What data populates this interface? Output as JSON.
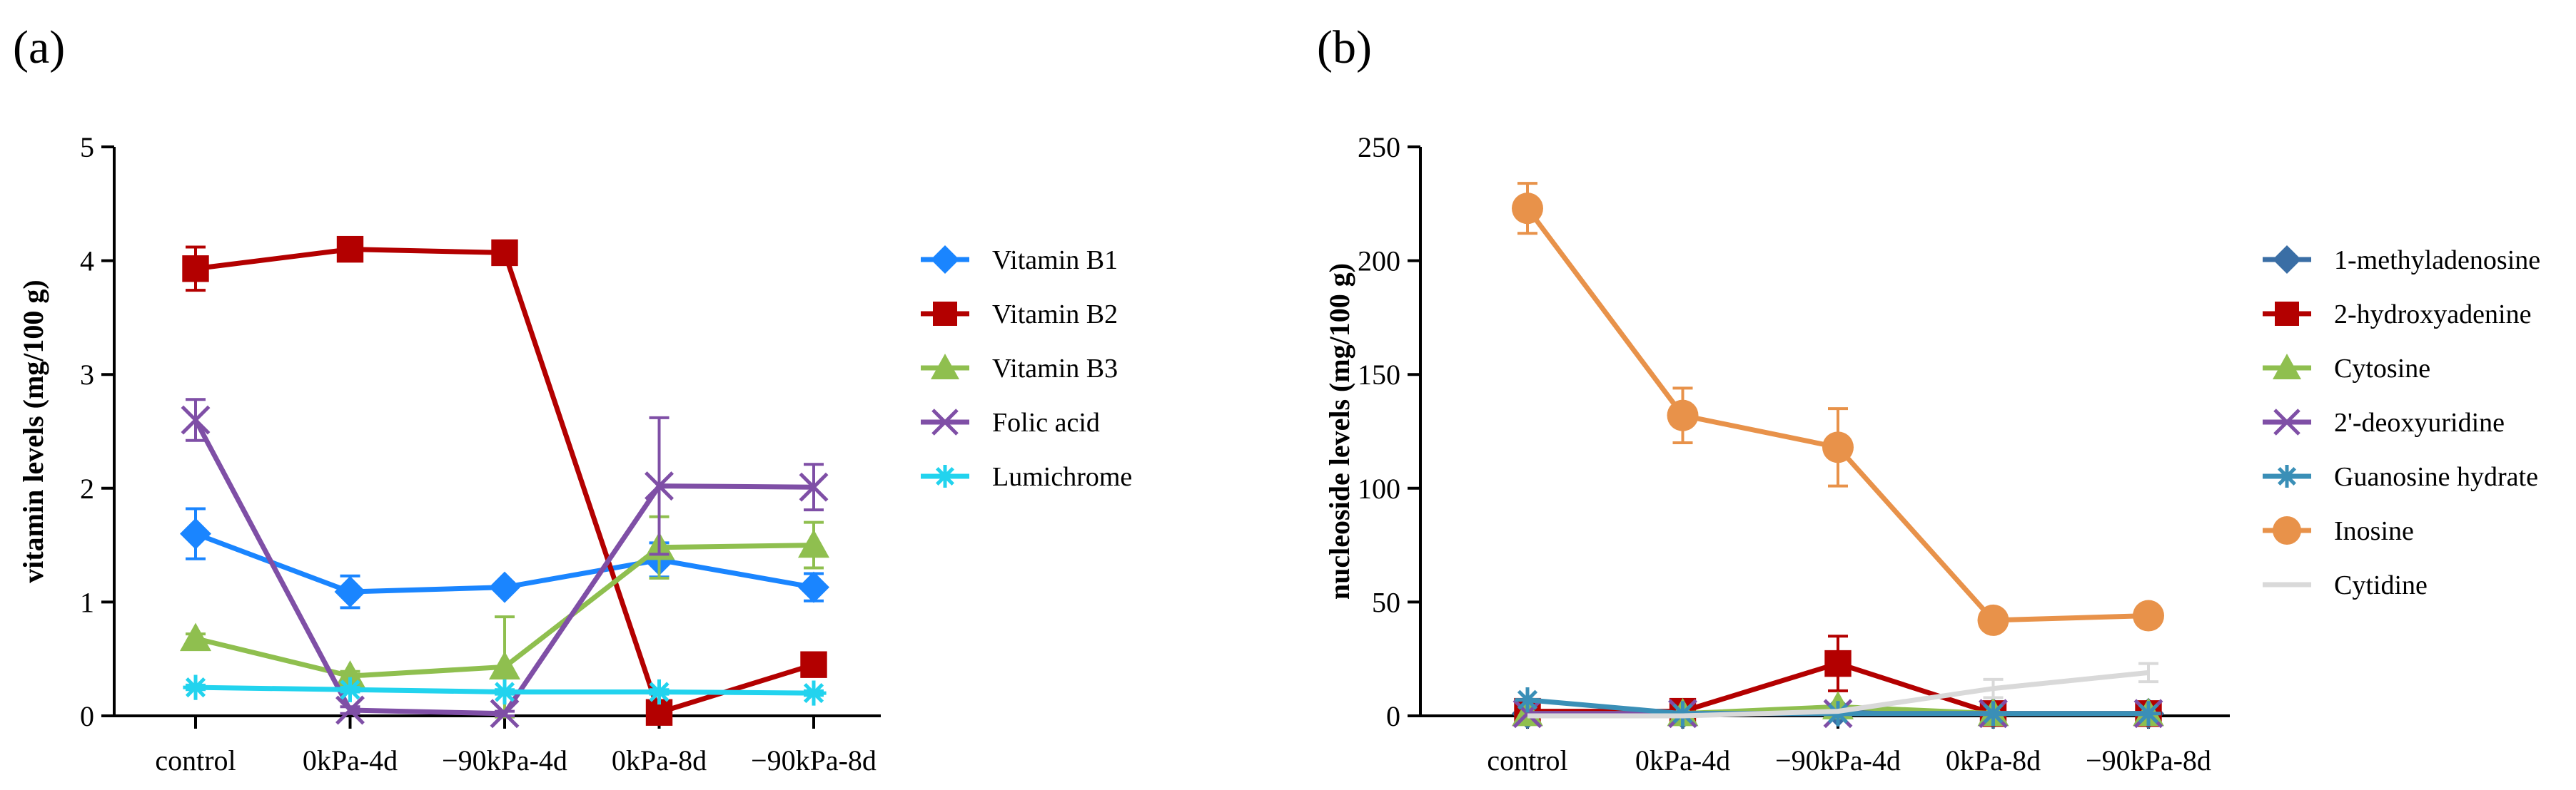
{
  "chart_data": [
    {
      "panel": "(a)",
      "type": "line",
      "ylabel": "vitamin levels (mg/100 g)",
      "xlabel": "",
      "categories": [
        "control",
        "0kPa-4d",
        "−90kPa-4d",
        "0kPa-8d",
        "−90kPa-8d"
      ],
      "ylim": [
        0,
        5
      ],
      "yticks": [
        0,
        1,
        2,
        3,
        4,
        5
      ],
      "series": [
        {
          "name": "Vitamin B1",
          "color": "#1a85ff",
          "marker": "diamond",
          "values": [
            1.6,
            1.09,
            1.13,
            1.37,
            1.13
          ],
          "errors": [
            0.22,
            0.14,
            0.04,
            0.15,
            0.12
          ]
        },
        {
          "name": "Vitamin B2",
          "color": "#b30000",
          "marker": "square",
          "values": [
            3.93,
            4.1,
            4.07,
            0.03,
            0.45
          ],
          "errors": [
            0.19,
            0.04,
            0.04,
            0.02,
            0.04
          ]
        },
        {
          "name": "Vitamin B3",
          "color": "#8fbf4f",
          "marker": "triangle",
          "values": [
            0.68,
            0.35,
            0.43,
            1.48,
            1.5
          ],
          "errors": [
            0.04,
            0.04,
            0.44,
            0.27,
            0.2
          ]
        },
        {
          "name": "Folic acid",
          "color": "#7f4fa6",
          "marker": "x",
          "values": [
            2.6,
            0.05,
            0.02,
            2.02,
            2.01
          ],
          "errors": [
            0.18,
            0.03,
            0.02,
            0.6,
            0.2
          ]
        },
        {
          "name": "Lumichrome",
          "color": "#22d3ee",
          "marker": "star",
          "values": [
            0.25,
            0.23,
            0.21,
            0.21,
            0.2
          ],
          "errors": [
            0.02,
            0.02,
            0.02,
            0.02,
            0.02
          ]
        }
      ],
      "legend": "right"
    },
    {
      "panel": "(b)",
      "type": "line",
      "ylabel": "nucleoside levels (mg/100 g)",
      "xlabel": "",
      "categories": [
        "control",
        "0kPa-4d",
        "−90kPa-4d",
        "0kPa-8d",
        "−90kPa-8d"
      ],
      "ylim": [
        0,
        250
      ],
      "yticks": [
        0,
        50,
        100,
        150,
        200,
        250
      ],
      "series": [
        {
          "name": "1-methyladenosine",
          "color": "#3a6ea5",
          "marker": "diamond",
          "values": [
            1,
            1,
            2,
            1,
            1
          ],
          "errors": [
            0,
            0,
            0,
            0,
            0
          ]
        },
        {
          "name": "2-hydroxyadenine",
          "color": "#b30000",
          "marker": "square",
          "values": [
            2,
            2,
            23,
            1,
            1
          ],
          "errors": [
            1,
            1,
            12,
            0,
            0
          ]
        },
        {
          "name": "Cytosine",
          "color": "#8fbf4f",
          "marker": "triangle",
          "values": [
            1,
            1,
            4,
            1,
            1
          ],
          "errors": [
            0,
            0,
            0,
            0,
            0
          ]
        },
        {
          "name": "2'-deoxyuridine",
          "color": "#7f4fa6",
          "marker": "x",
          "values": [
            1,
            1,
            1,
            1,
            1
          ],
          "errors": [
            0,
            0,
            0,
            0,
            0
          ]
        },
        {
          "name": "Guanosine hydrate",
          "color": "#3a8fb7",
          "marker": "star",
          "values": [
            7,
            1,
            1,
            1,
            1
          ],
          "errors": [
            0,
            0,
            0,
            0,
            0
          ]
        },
        {
          "name": "Inosine",
          "color": "#e8924a",
          "marker": "circle",
          "values": [
            223,
            132,
            118,
            42,
            44
          ],
          "errors": [
            11,
            12,
            17,
            2,
            2
          ]
        },
        {
          "name": "Cytidine",
          "color": "#d9d9d9",
          "marker": "none",
          "values": [
            0,
            0,
            2,
            12,
            19
          ],
          "errors": [
            0,
            0,
            0,
            4,
            4
          ]
        }
      ],
      "legend": "right"
    }
  ]
}
